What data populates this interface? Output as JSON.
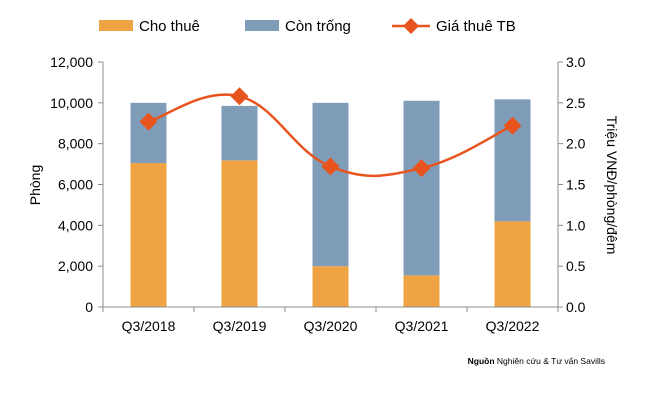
{
  "chart_data": {
    "type": "bar",
    "categories": [
      "Q3/2018",
      "Q3/2019",
      "Q3/2020",
      "Q3/2021",
      "Q3/2022"
    ],
    "series": [
      {
        "name": "Cho thuê",
        "type": "stacked-bar",
        "axis": "left",
        "color": "#F0A343",
        "values": [
          7050,
          7180,
          2000,
          1550,
          4200
        ]
      },
      {
        "name": "Còn trống",
        "type": "stacked-bar",
        "axis": "left",
        "color": "#7F9DB9",
        "values": [
          2950,
          2670,
          8000,
          8550,
          5970
        ]
      },
      {
        "name": "Giá thuê TB",
        "type": "line",
        "axis": "right",
        "color": "#E8541E",
        "marker": "diamond",
        "values": [
          2.27,
          2.58,
          1.72,
          1.7,
          2.22
        ]
      }
    ],
    "ylabel": "Phòng",
    "y2label": "Triệu VNĐ/phòng/đêm",
    "ylim": [
      0,
      12000
    ],
    "y2lim": [
      0,
      3.0
    ],
    "yticks": [
      "0",
      "2,000",
      "4,000",
      "6,000",
      "8,000",
      "10,000",
      "12,000"
    ],
    "y2ticks": [
      "0.0",
      "0.5",
      "1.0",
      "1.5",
      "2.0",
      "2.5",
      "3.0"
    ],
    "grid": false,
    "legend_position": "top"
  },
  "source": {
    "label": "Nguồn",
    "text": "Nghiên cứu & Tư vấn Savills"
  }
}
